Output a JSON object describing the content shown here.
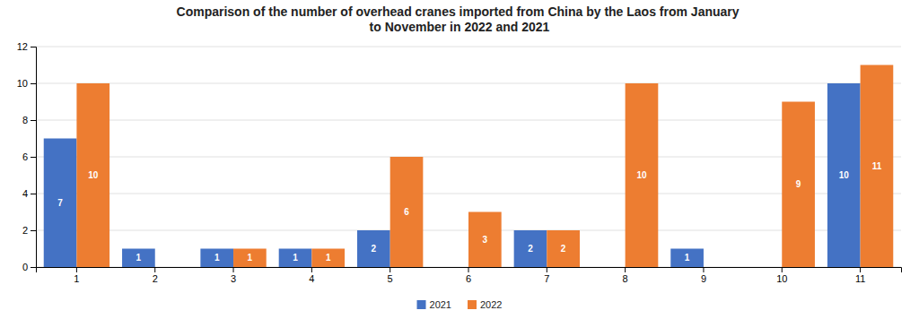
{
  "chart_data": {
    "type": "bar",
    "title": "Comparison of the number of overhead cranes imported from China by the Laos from January\nto November in 2022 and 2021",
    "categories": [
      1,
      2,
      3,
      4,
      5,
      6,
      7,
      8,
      9,
      10,
      11
    ],
    "series": [
      {
        "name": "2021",
        "color": "#4472C4",
        "values": [
          7,
          1,
          1,
          1,
          2,
          0,
          2,
          0,
          1,
          0,
          10
        ],
        "value_labels": [
          "7",
          "1",
          "1",
          "1",
          "2",
          null,
          "2",
          null,
          "1",
          null,
          "10"
        ]
      },
      {
        "name": "2022",
        "color": "#ED7D31",
        "values": [
          10,
          0,
          1,
          1,
          6,
          3,
          2,
          10,
          0,
          9,
          11
        ],
        "value_labels": [
          "10",
          null,
          "1",
          "1",
          "6",
          "3",
          "2",
          "10",
          null,
          "9",
          "11"
        ]
      }
    ],
    "ylim": [
      0,
      12
    ],
    "yticks": [
      0,
      2,
      4,
      6,
      8,
      10,
      12
    ],
    "grid": true,
    "legend": "bottom",
    "data_labels": true
  }
}
